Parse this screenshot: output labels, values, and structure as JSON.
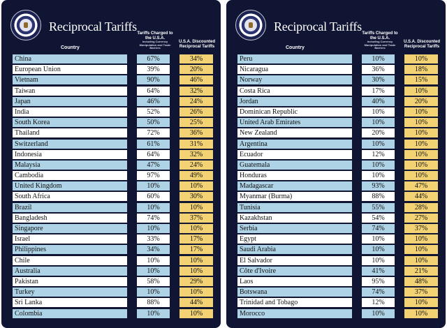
{
  "title": "Reciprocal Tariffs",
  "headers": {
    "country": "Country",
    "charged": "Tariffs Charged to the U.S.A.",
    "charged_sub": "Including Currency Manipulation and Trade Barriers",
    "discounted": "U.S.A. Discounted Reciprocal Tariffs"
  },
  "colors": {
    "board": "#0f1533",
    "row_alt": "#aed3e6",
    "discounted": "#f2d273"
  },
  "left_table": [
    {
      "country": "China",
      "charged": "67%",
      "discounted": "34%"
    },
    {
      "country": "European Union",
      "charged": "39%",
      "discounted": "20%"
    },
    {
      "country": "Vietnam",
      "charged": "90%",
      "discounted": "46%"
    },
    {
      "country": "Taiwan",
      "charged": "64%",
      "discounted": "32%"
    },
    {
      "country": "Japan",
      "charged": "46%",
      "discounted": "24%"
    },
    {
      "country": "India",
      "charged": "52%",
      "discounted": "26%"
    },
    {
      "country": "South Korea",
      "charged": "50%",
      "discounted": "25%"
    },
    {
      "country": "Thailand",
      "charged": "72%",
      "discounted": "36%"
    },
    {
      "country": "Switzerland",
      "charged": "61%",
      "discounted": "31%"
    },
    {
      "country": "Indonesia",
      "charged": "64%",
      "discounted": "32%"
    },
    {
      "country": "Malaysia",
      "charged": "47%",
      "discounted": "24%"
    },
    {
      "country": "Cambodia",
      "charged": "97%",
      "discounted": "49%"
    },
    {
      "country": "United Kingdom",
      "charged": "10%",
      "discounted": "10%"
    },
    {
      "country": "South Africa",
      "charged": "60%",
      "discounted": "30%"
    },
    {
      "country": "Brazil",
      "charged": "10%",
      "discounted": "10%"
    },
    {
      "country": "Bangladesh",
      "charged": "74%",
      "discounted": "37%"
    },
    {
      "country": "Singapore",
      "charged": "10%",
      "discounted": "10%"
    },
    {
      "country": "Israel",
      "charged": "33%",
      "discounted": "17%"
    },
    {
      "country": "Philippines",
      "charged": "34%",
      "discounted": "17%"
    },
    {
      "country": "Chile",
      "charged": "10%",
      "discounted": "10%"
    },
    {
      "country": "Australia",
      "charged": "10%",
      "discounted": "10%"
    },
    {
      "country": "Pakistan",
      "charged": "58%",
      "discounted": "29%"
    },
    {
      "country": "Turkey",
      "charged": "10%",
      "discounted": "10%"
    },
    {
      "country": "Sri Lanka",
      "charged": "88%",
      "discounted": "44%"
    },
    {
      "country": "Colombia",
      "charged": "10%",
      "discounted": "10%"
    }
  ],
  "right_table": [
    {
      "country": "Peru",
      "charged": "10%",
      "discounted": "10%"
    },
    {
      "country": "Nicaragua",
      "charged": "36%",
      "discounted": "18%"
    },
    {
      "country": "Norway",
      "charged": "30%",
      "discounted": "15%"
    },
    {
      "country": "Costa Rica",
      "charged": "17%",
      "discounted": "10%"
    },
    {
      "country": "Jordan",
      "charged": "40%",
      "discounted": "20%"
    },
    {
      "country": "Dominican Republic",
      "charged": "10%",
      "discounted": "10%"
    },
    {
      "country": "United Arab Emirates",
      "charged": "10%",
      "discounted": "10%"
    },
    {
      "country": "New Zealand",
      "charged": "20%",
      "discounted": "10%"
    },
    {
      "country": "Argentina",
      "charged": "10%",
      "discounted": "10%"
    },
    {
      "country": "Ecuador",
      "charged": "12%",
      "discounted": "10%"
    },
    {
      "country": "Guatemala",
      "charged": "10%",
      "discounted": "10%"
    },
    {
      "country": "Honduras",
      "charged": "10%",
      "discounted": "10%"
    },
    {
      "country": "Madagascar",
      "charged": "93%",
      "discounted": "47%"
    },
    {
      "country": "Myanmar (Burma)",
      "charged": "88%",
      "discounted": "44%"
    },
    {
      "country": "Tunisia",
      "charged": "55%",
      "discounted": "28%"
    },
    {
      "country": "Kazakhstan",
      "charged": "54%",
      "discounted": "27%"
    },
    {
      "country": "Serbia",
      "charged": "74%",
      "discounted": "37%"
    },
    {
      "country": "Egypt",
      "charged": "10%",
      "discounted": "10%"
    },
    {
      "country": "Saudi Arabia",
      "charged": "10%",
      "discounted": "10%"
    },
    {
      "country": "El Salvador",
      "charged": "10%",
      "discounted": "10%"
    },
    {
      "country": "Côte d'Ivoire",
      "charged": "41%",
      "discounted": "21%"
    },
    {
      "country": "Laos",
      "charged": "95%",
      "discounted": "48%"
    },
    {
      "country": "Botswana",
      "charged": "74%",
      "discounted": "37%"
    },
    {
      "country": "Trinidad and Tobago",
      "charged": "12%",
      "discounted": "10%"
    },
    {
      "country": "Morocco",
      "charged": "10%",
      "discounted": "10%"
    }
  ]
}
